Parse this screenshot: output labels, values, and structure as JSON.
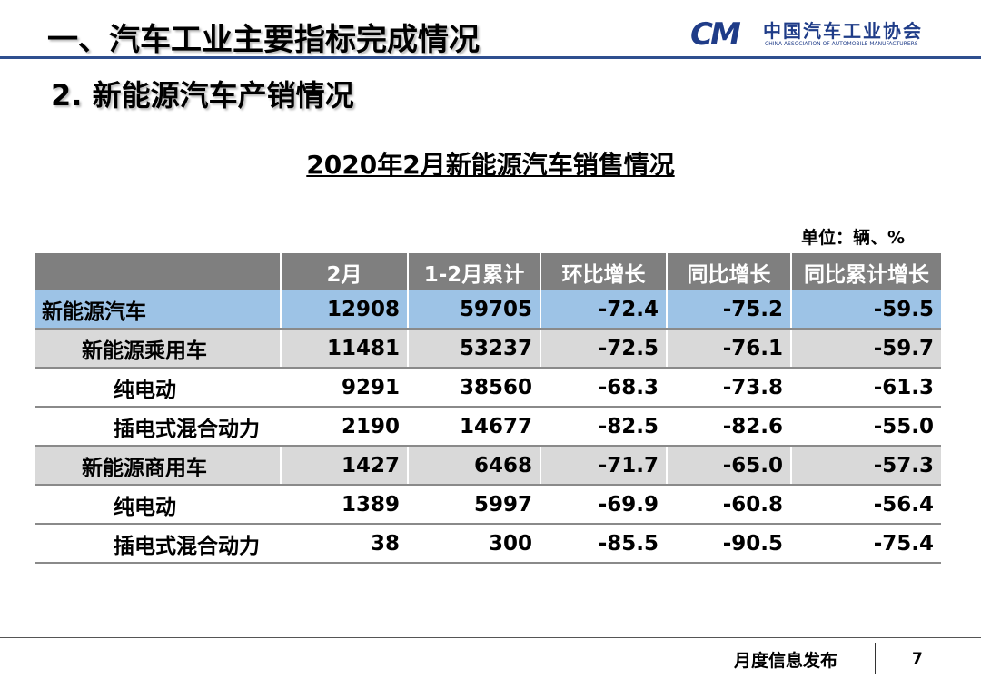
{
  "header": {
    "title": "一、汽车工业主要指标完成情况",
    "logo_mark": "CM",
    "logo_name": "中国汽车工业协会",
    "logo_english": "CHINA ASSOCIATION OF AUTOMOBILE MANUFACTURERS"
  },
  "subtitle": "2. 新能源汽车产销情况",
  "table": {
    "title": "2020年2月新能源汽车销售情况",
    "unit": "单位：辆、%",
    "columns": [
      "2月",
      "1-2月累计",
      "环比增长",
      "同比增长",
      "同比累计增长"
    ],
    "rows": [
      [
        "新能源汽车",
        "12908",
        "59705",
        "-72.4",
        "-75.2",
        "-59.5"
      ],
      [
        "新能源乘用车",
        "11481",
        "53237",
        "-72.5",
        "-76.1",
        "-59.7"
      ],
      [
        "纯电动",
        "9291",
        "38560",
        "-68.3",
        "-73.8",
        "-61.3"
      ],
      [
        "插电式混合动力",
        "2190",
        "14677",
        "-82.5",
        "-82.6",
        "-55.0"
      ],
      [
        "新能源商用车",
        "1427",
        "6468",
        "-71.7",
        "-65.0",
        "-57.3"
      ],
      [
        "纯电动",
        "1389",
        "5997",
        "-69.9",
        "-60.8",
        "-56.4"
      ],
      [
        "插电式混合动力",
        "38",
        "300",
        "-85.5",
        "-90.5",
        "-75.4"
      ]
    ]
  },
  "footer": {
    "label": "月度信息发布",
    "page": "7"
  }
}
